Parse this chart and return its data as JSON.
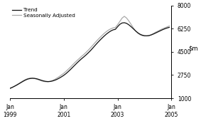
{
  "ylim": [
    1000,
    8000
  ],
  "yticks": [
    1000,
    2750,
    4500,
    6250,
    8000
  ],
  "xlim": [
    0,
    72
  ],
  "xtick_positions": [
    0,
    24,
    48,
    72
  ],
  "xtick_labels": [
    "Jan\n1999",
    "Jan\n2001",
    "Jan\n2003",
    "Jan\n2005"
  ],
  "trend_color": "#111111",
  "sa_color": "#aaaaaa",
  "background_color": "#ffffff",
  "legend_trend": "Trend",
  "legend_sa": "Seasonally Adjusted",
  "trend_data": [
    1750,
    1820,
    1900,
    1990,
    2090,
    2190,
    2290,
    2380,
    2450,
    2490,
    2510,
    2500,
    2470,
    2420,
    2360,
    2310,
    2275,
    2260,
    2270,
    2305,
    2360,
    2430,
    2520,
    2620,
    2730,
    2860,
    3010,
    3170,
    3340,
    3510,
    3680,
    3840,
    3990,
    4130,
    4280,
    4440,
    4610,
    4800,
    4990,
    5180,
    5360,
    5530,
    5690,
    5840,
    5970,
    6080,
    6160,
    6200,
    6400,
    6580,
    6680,
    6700,
    6650,
    6540,
    6400,
    6240,
    6080,
    5940,
    5830,
    5760,
    5720,
    5710,
    5730,
    5780,
    5850,
    5930,
    6010,
    6090,
    6170,
    6240,
    6300,
    6350
  ],
  "sa_data": [
    1720,
    1810,
    1910,
    2010,
    2110,
    2220,
    2330,
    2420,
    2490,
    2520,
    2520,
    2490,
    2440,
    2380,
    2320,
    2270,
    2250,
    2250,
    2280,
    2340,
    2420,
    2530,
    2640,
    2760,
    2880,
    3030,
    3190,
    3350,
    3530,
    3700,
    3860,
    4010,
    4170,
    4310,
    4470,
    4640,
    4820,
    5010,
    5200,
    5390,
    5560,
    5730,
    5890,
    6030,
    6150,
    6240,
    6310,
    6340,
    6550,
    6800,
    7050,
    7180,
    7050,
    6830,
    6570,
    6310,
    6080,
    5910,
    5790,
    5720,
    5700,
    5710,
    5730,
    5800,
    5890,
    5990,
    6070,
    6160,
    6240,
    6310,
    6380,
    6450
  ]
}
